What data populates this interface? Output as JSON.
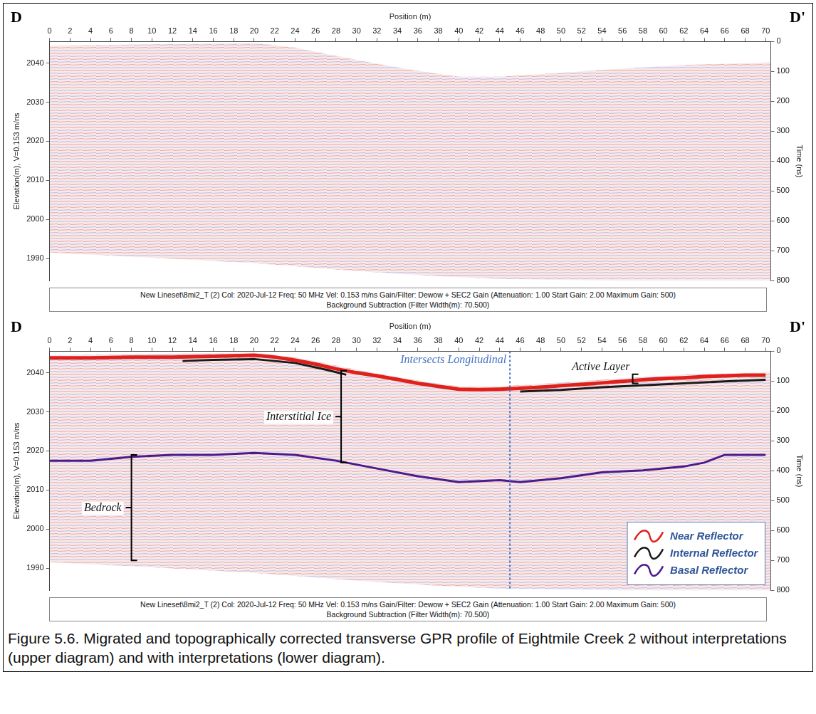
{
  "chart_data": [
    {
      "type": "line",
      "start_label": "D",
      "end_label": "D'",
      "x_label": "Position (m)",
      "y_label": "Elevation(m), V=0.153 m/ns",
      "y2_label": "Time (ns)",
      "xlim": [
        0,
        70.5
      ],
      "xticks": [
        0,
        2,
        4,
        6,
        8,
        10,
        12,
        14,
        16,
        18,
        20,
        22,
        24,
        26,
        28,
        30,
        32,
        34,
        36,
        38,
        40,
        42,
        44,
        46,
        48,
        50,
        52,
        54,
        56,
        58,
        60,
        62,
        64,
        66,
        68,
        70
      ],
      "ylim": [
        1984.3,
        2045.5
      ],
      "yticks": [
        1990,
        2000,
        2010,
        2020,
        2030,
        2040
      ],
      "y2lim": [
        800,
        0
      ],
      "y2ticks": [
        0,
        100,
        200,
        300,
        400,
        500,
        600,
        700,
        800
      ],
      "grid": false,
      "radargram": {
        "x": [
          0,
          10,
          20,
          24,
          30,
          36,
          40,
          44,
          50,
          56,
          62,
          70.5
        ],
        "top": [
          2044.5,
          2044.8,
          2045.2,
          2044,
          2040.8,
          2038,
          2036.5,
          2036.5,
          2037.5,
          2038.6,
          2039.5,
          2040.2
        ],
        "bottom": [
          1991.5,
          1990.2,
          1988.8,
          1988,
          1986.8,
          1985.8,
          1985.2,
          1984.8,
          1984.5,
          1984.3,
          1984.3,
          1984.3
        ]
      },
      "footer": [
        "New Lineset\\8mi2_T (2)  Col: 2020-Jul-12  Freq: 50 MHz  Vel: 0.153 m/ns  Gain/Filter: Dewow + SEC2 Gain (Attenuation: 1.00 Start Gain: 2.00 Maximum Gain: 500)",
        "Background Subtraction (Filter Width(m): 70.500)"
      ]
    },
    {
      "type": "line",
      "start_label": "D",
      "end_label": "D'",
      "x_label": "Position (m)",
      "y_label": "Elevation(m), V=0.153 m/ns",
      "y2_label": "Time (ns)",
      "xlim": [
        0,
        70.5
      ],
      "xticks": [
        0,
        2,
        4,
        6,
        8,
        10,
        12,
        14,
        16,
        18,
        20,
        22,
        24,
        26,
        28,
        30,
        32,
        34,
        36,
        38,
        40,
        42,
        44,
        46,
        48,
        50,
        52,
        54,
        56,
        58,
        60,
        62,
        64,
        66,
        68,
        70
      ],
      "ylim": [
        1984.3,
        2045.5
      ],
      "yticks": [
        1990,
        2000,
        2010,
        2020,
        2030,
        2040
      ],
      "y2lim": [
        800,
        0
      ],
      "y2ticks": [
        0,
        100,
        200,
        300,
        400,
        500,
        600,
        700,
        800
      ],
      "grid": false,
      "legend": "lower right",
      "radargram": {
        "x": [
          0,
          10,
          20,
          24,
          30,
          36,
          40,
          44,
          50,
          56,
          62,
          70.5
        ],
        "top": [
          2044.5,
          2044.8,
          2045.2,
          2044,
          2040.8,
          2038,
          2036.5,
          2036.5,
          2037.5,
          2038.6,
          2039.5,
          2040.2
        ],
        "bottom": [
          1991.5,
          1990.2,
          1988.8,
          1988,
          1986.8,
          1985.8,
          1985.2,
          1984.8,
          1984.5,
          1984.3,
          1984.3,
          1984.3
        ]
      },
      "series": [
        {
          "name": "Near Reflector",
          "color": "#e0201b",
          "x": [
            0,
            4,
            8,
            12,
            16,
            20,
            22,
            24,
            26,
            28,
            30,
            32,
            34,
            36,
            38,
            40,
            42,
            44,
            46,
            48,
            50,
            52,
            54,
            56,
            58,
            60,
            62,
            64,
            66,
            68,
            70
          ],
          "values": [
            2043.8,
            2043.8,
            2044,
            2044,
            2044.2,
            2044.5,
            2044,
            2043.2,
            2042.2,
            2041,
            2040,
            2039.2,
            2038.3,
            2037.3,
            2036.5,
            2035.8,
            2035.7,
            2035.8,
            2036,
            2036.3,
            2036.7,
            2037,
            2037.4,
            2037.8,
            2038.2,
            2038.5,
            2038.7,
            2039,
            2039.2,
            2039.4,
            2039.4
          ]
        },
        {
          "name": "Internal Reflector",
          "color": "#1a1a1a",
          "x": [
            13,
            16,
            20,
            24,
            27,
            29,
            31,
            46,
            50,
            54,
            58,
            62,
            66,
            70
          ],
          "values": [
            2043,
            2043.3,
            2043.5,
            2042.5,
            2040.8,
            2039.5,
            null,
            2035.2,
            2035.6,
            2036.3,
            2036.8,
            2037.3,
            2037.8,
            2038.2
          ]
        },
        {
          "name": "Basal Reflector",
          "color": "#4b1a8c",
          "x": [
            0,
            4,
            8,
            12,
            16,
            20,
            24,
            28,
            32,
            36,
            40,
            44,
            46,
            50,
            54,
            58,
            62,
            64,
            66,
            70
          ],
          "values": [
            2017.5,
            2017.5,
            2018.5,
            2019,
            2019,
            2019.5,
            2019,
            2017.5,
            2015.5,
            2013.5,
            2012,
            2012.5,
            2012,
            2013,
            2014.5,
            2015,
            2016,
            2017,
            2019,
            2019
          ]
        }
      ],
      "annotations": [
        {
          "text": "Interstitial Ice",
          "x": 28.5,
          "y": [
            2017,
            2040.5
          ]
        },
        {
          "text": "Bedrock",
          "x": 8,
          "y": [
            1992,
            2019
          ]
        },
        {
          "text": "Active Layer",
          "x": 57,
          "y": [
            2037.3,
            2039.6
          ]
        }
      ],
      "vertical_lines": [
        {
          "text": "Intersects Longitudinal",
          "x": 45,
          "color": "#4472c4"
        }
      ],
      "footer": [
        "New Lineset\\8mi2_T (2)  Col: 2020-Jul-12  Freq: 50 MHz  Vel: 0.153 m/ns  Gain/Filter: Dewow + SEC2 Gain (Attenuation: 1.00 Start Gain: 2.00 Maximum Gain: 500)",
        "Background Subtraction (Filter Width(m): 70.500)"
      ]
    }
  ],
  "caption": "Figure 5.6. Migrated and topographically corrected transverse GPR profile of Eightmile Creek 2 without interpretations (upper diagram) and with interpretations (lower diagram)."
}
